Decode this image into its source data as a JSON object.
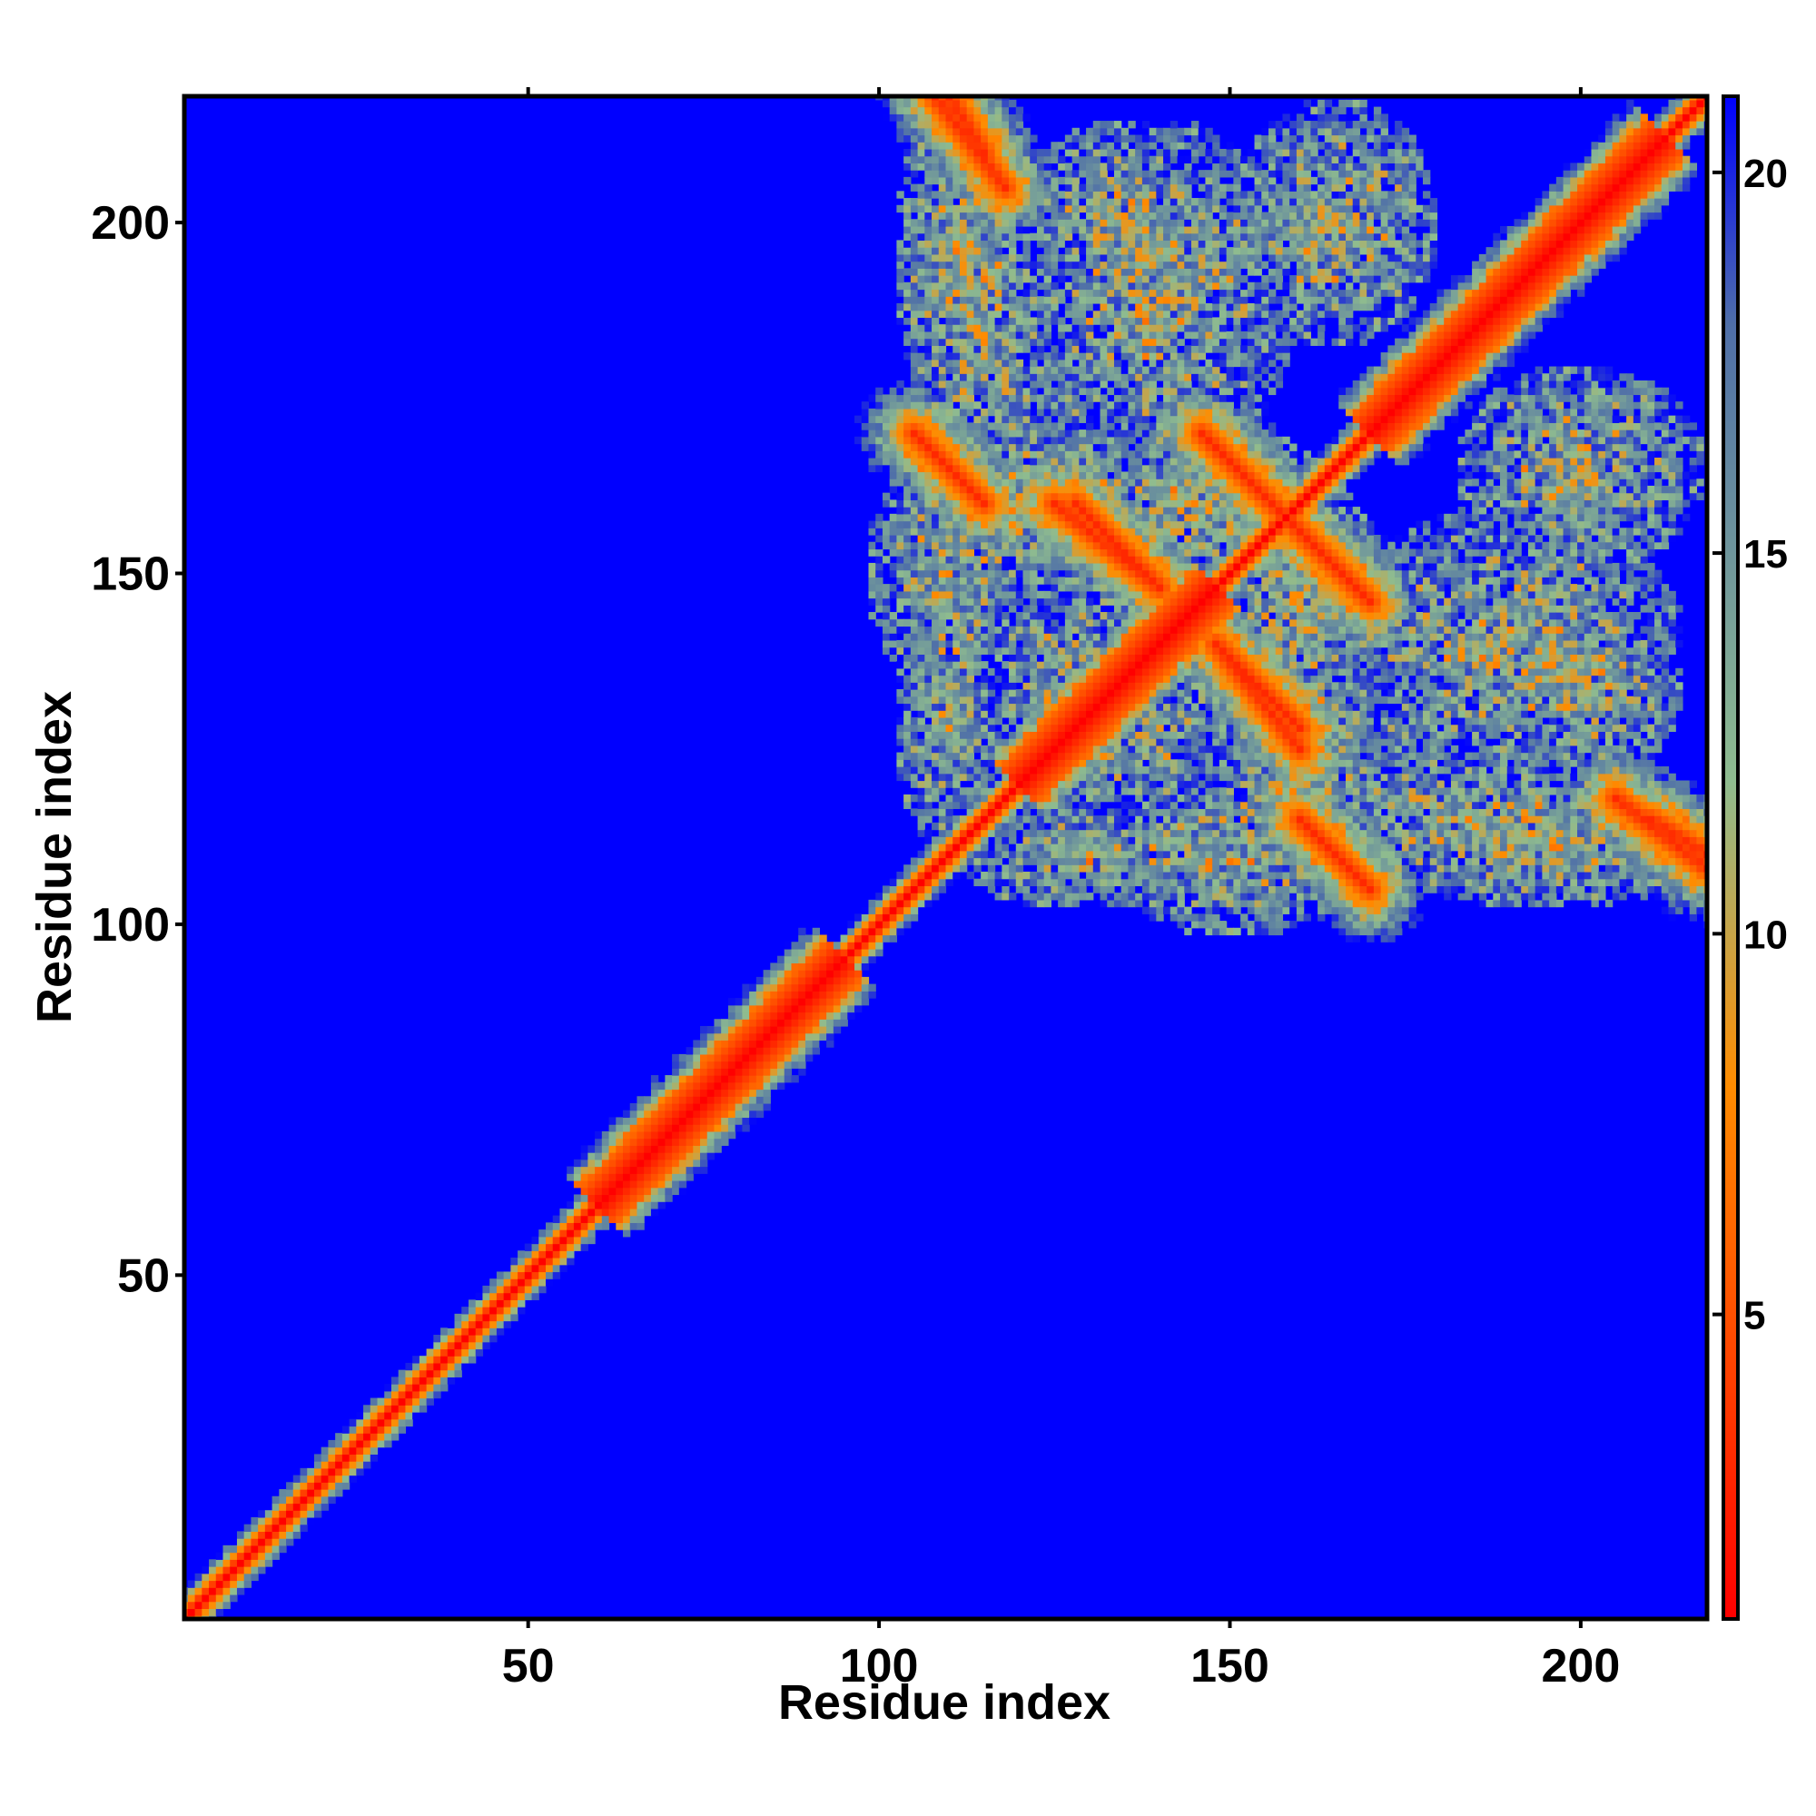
{
  "chart_data": {
    "type": "heatmap",
    "title": "",
    "xlabel": "Residue index",
    "ylabel": "Residue index",
    "xlim": [
      1,
      218
    ],
    "ylim": [
      1,
      218
    ],
    "n_residues": 218,
    "x_ticks": [
      50,
      100,
      150,
      200
    ],
    "y_ticks": [
      50,
      100,
      150,
      200
    ],
    "colorbar": {
      "range": [
        1,
        21
      ],
      "ticks": [
        5,
        10,
        15,
        20
      ],
      "colors": [
        "#ff0000",
        "#ff8c00",
        "#8fbc8f",
        "#4f6fa8",
        "#0000ff"
      ],
      "stops": [
        0,
        0.35,
        0.55,
        0.85,
        1
      ]
    },
    "background_color": "#0000ff",
    "diagonal": [
      {
        "from": 1,
        "to": 218,
        "halfwidth": 1.6
      },
      {
        "from": 60,
        "to": 95,
        "halfwidth": 5
      },
      {
        "from": 120,
        "to": 148,
        "halfwidth": 5
      },
      {
        "from": 170,
        "to": 212,
        "halfwidth": 5
      }
    ],
    "contact_lines": [
      {
        "start": [
          105,
          170
        ],
        "end": [
          115,
          160
        ],
        "halfwidth": 2.2
      },
      {
        "start": [
          146,
          170
        ],
        "end": [
          170,
          146
        ],
        "halfwidth": 2.2
      },
      {
        "start": [
          110,
          218
        ],
        "end": [
          115,
          210
        ],
        "halfwidth": 2.0
      },
      {
        "start": [
          160,
          115
        ],
        "end": [
          170,
          105
        ],
        "halfwidth": 2.0
      },
      {
        "start": [
          205,
          118
        ],
        "end": [
          218,
          108
        ],
        "halfwidth": 2.0
      },
      {
        "start": [
          128,
          160
        ],
        "end": [
          140,
          148
        ],
        "halfwidth": 1.5
      },
      {
        "start": [
          148,
          140
        ],
        "end": [
          160,
          125
        ],
        "halfwidth": 1.5
      }
    ],
    "contact_regions": [
      {
        "center": [
          112,
          195
        ],
        "radius": [
          10,
          25
        ]
      },
      {
        "center": [
          110,
          150
        ],
        "radius": [
          12,
          18
        ]
      },
      {
        "center": [
          135,
          200
        ],
        "radius": [
          15,
          15
        ]
      },
      {
        "center": [
          165,
          200
        ],
        "radius": [
          15,
          18
        ]
      },
      {
        "center": [
          145,
          160
        ],
        "radius": [
          20,
          12
        ]
      },
      {
        "center": [
          130,
          135
        ],
        "radius": [
          15,
          15
        ]
      },
      {
        "center": [
          160,
          125
        ],
        "radius": [
          15,
          18
        ]
      },
      {
        "center": [
          190,
          140
        ],
        "radius": [
          25,
          20
        ]
      },
      {
        "center": [
          200,
          165
        ],
        "radius": [
          18,
          15
        ]
      },
      {
        "center": [
          185,
          115
        ],
        "radius": [
          25,
          10
        ]
      },
      {
        "center": [
          130,
          110
        ],
        "radius": [
          20,
          8
        ]
      }
    ]
  }
}
